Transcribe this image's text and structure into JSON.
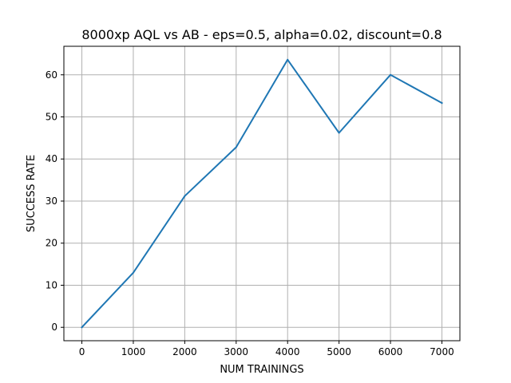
{
  "chart_data": {
    "type": "line",
    "title": "8000xp AQL vs AB - eps=0.5, alpha=0.02, discount=0.8",
    "xlabel": "NUM TRAININGS",
    "ylabel": "SUCCESS RATE",
    "x": [
      0,
      1000,
      2000,
      3000,
      4000,
      5000,
      6000,
      7000
    ],
    "series": [
      {
        "values": [
          0,
          13,
          31.2,
          42.8,
          63.6,
          46.2,
          60.0,
          53.3
        ],
        "color": "#1f77b4"
      }
    ],
    "xlim": [
      -350,
      7350
    ],
    "ylim": [
      -3.18,
      66.78
    ],
    "xticks": [
      0,
      1000,
      2000,
      3000,
      4000,
      5000,
      6000,
      7000
    ],
    "yticks": [
      0,
      10,
      20,
      30,
      40,
      50,
      60
    ],
    "grid": true,
    "legend": false
  }
}
